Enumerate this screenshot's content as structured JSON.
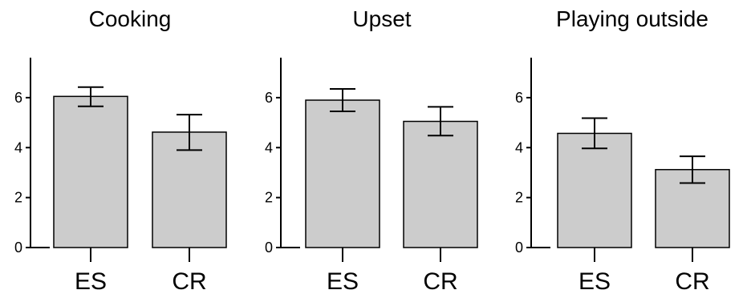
{
  "chart_data": [
    {
      "type": "bar",
      "title": "Cooking",
      "categories": [
        "ES",
        "CR"
      ],
      "values": [
        6.05,
        4.62
      ],
      "error_low": [
        5.65,
        3.9
      ],
      "error_high": [
        6.42,
        5.32
      ],
      "ylim": [
        0,
        7.6
      ],
      "yticks": [
        0,
        2,
        4,
        6
      ],
      "ytick_labels": [
        "0",
        "2",
        "4",
        "6"
      ],
      "xlabel": "",
      "ylabel": "",
      "bar_color": "#cccccc",
      "grid": false
    },
    {
      "type": "bar",
      "title": "Upset",
      "categories": [
        "ES",
        "CR"
      ],
      "values": [
        5.9,
        5.05
      ],
      "error_low": [
        5.45,
        4.48
      ],
      "error_high": [
        6.35,
        5.63
      ],
      "ylim": [
        0,
        7.6
      ],
      "yticks": [
        0,
        2,
        4,
        6
      ],
      "ytick_labels": [
        "0",
        "2",
        "4",
        "6"
      ],
      "xlabel": "",
      "ylabel": "",
      "bar_color": "#cccccc",
      "grid": false
    },
    {
      "type": "bar",
      "title": "Playing outside",
      "categories": [
        "ES",
        "CR"
      ],
      "values": [
        4.57,
        3.12
      ],
      "error_low": [
        3.97,
        2.58
      ],
      "error_high": [
        5.18,
        3.65
      ],
      "ylim": [
        0,
        7.6
      ],
      "yticks": [
        0,
        2,
        4,
        6
      ],
      "ytick_labels": [
        "0",
        "2",
        "4",
        "6"
      ],
      "xlabel": "",
      "ylabel": "",
      "bar_color": "#cccccc",
      "grid": false
    }
  ]
}
